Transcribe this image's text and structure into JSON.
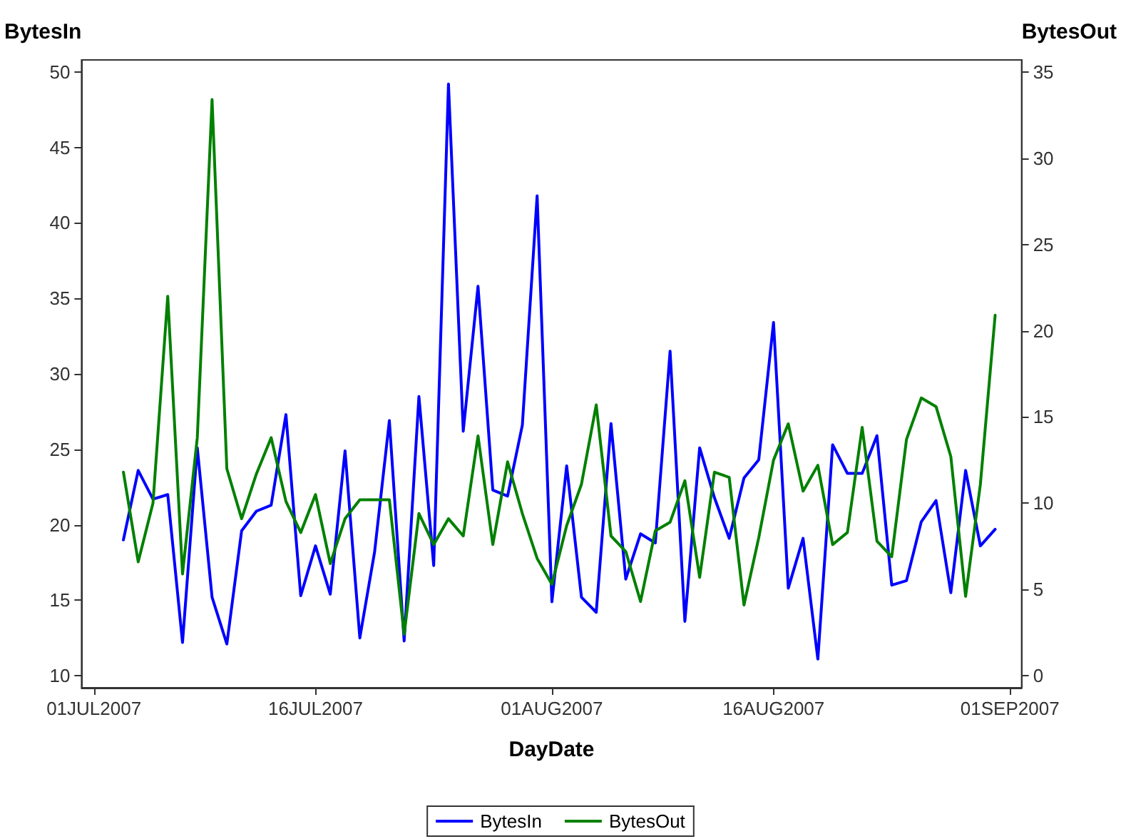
{
  "chart_data": {
    "type": "line",
    "xlabel": "DayDate",
    "ylabel": "BytesIn",
    "y2label": "BytesOut",
    "x": [
      "2007-07-03",
      "2007-07-04",
      "2007-07-05",
      "2007-07-06",
      "2007-07-07",
      "2007-07-08",
      "2007-07-09",
      "2007-07-10",
      "2007-07-11",
      "2007-07-12",
      "2007-07-13",
      "2007-07-14",
      "2007-07-15",
      "2007-07-16",
      "2007-07-17",
      "2007-07-18",
      "2007-07-19",
      "2007-07-20",
      "2007-07-21",
      "2007-07-22",
      "2007-07-23",
      "2007-07-24",
      "2007-07-25",
      "2007-07-26",
      "2007-07-27",
      "2007-07-28",
      "2007-07-29",
      "2007-07-30",
      "2007-07-31",
      "2007-08-01",
      "2007-08-02",
      "2007-08-03",
      "2007-08-04",
      "2007-08-05",
      "2007-08-06",
      "2007-08-07",
      "2007-08-08",
      "2007-08-09",
      "2007-08-10",
      "2007-08-11",
      "2007-08-12",
      "2007-08-13",
      "2007-08-14",
      "2007-08-15",
      "2007-08-16",
      "2007-08-17",
      "2007-08-18",
      "2007-08-19",
      "2007-08-20",
      "2007-08-21",
      "2007-08-22",
      "2007-08-23",
      "2007-08-24",
      "2007-08-25",
      "2007-08-26",
      "2007-08-27",
      "2007-08-28",
      "2007-08-29",
      "2007-08-30",
      "2007-08-31"
    ],
    "series": [
      {
        "name": "BytesIn",
        "color": "#0000ff",
        "values": [
          19.0,
          23.6,
          21.7,
          22.0,
          12.2,
          25.1,
          15.2,
          12.1,
          19.6,
          20.9,
          21.3,
          27.3,
          15.3,
          18.6,
          15.4,
          24.9,
          12.5,
          18.2,
          26.9,
          12.3,
          28.5,
          17.3,
          49.2,
          26.2,
          35.8,
          22.3,
          21.9,
          26.6,
          41.8,
          14.9,
          23.9,
          15.2,
          14.2,
          26.7,
          16.4,
          19.4,
          18.8,
          31.5,
          13.6,
          25.1,
          21.8,
          19.1,
          23.1,
          24.3,
          33.4,
          15.8,
          19.1,
          11.1,
          25.3,
          23.4,
          23.4,
          25.9,
          16.0,
          16.3,
          20.2,
          21.6,
          15.5,
          23.6,
          18.6,
          19.7
        ]
      },
      {
        "name": "BytesOut",
        "color": "#008000",
        "axis": "y2",
        "values": [
          11.8,
          6.6,
          10.0,
          22.0,
          5.9,
          13.8,
          33.4,
          12.0,
          9.1,
          11.7,
          13.8,
          10.1,
          8.3,
          10.5,
          6.5,
          9.1,
          10.2,
          10.2,
          10.2,
          2.4,
          9.4,
          7.6,
          9.1,
          8.1,
          13.9,
          7.6,
          12.4,
          9.4,
          6.8,
          5.3,
          8.7,
          11.1,
          15.7,
          8.1,
          7.2,
          4.3,
          8.4,
          8.9,
          11.3,
          5.7,
          11.8,
          11.5,
          4.1,
          8.0,
          12.5,
          14.6,
          10.7,
          12.2,
          7.6,
          8.3,
          14.4,
          7.8,
          6.9,
          13.7,
          16.1,
          15.6,
          12.7,
          4.6,
          11.1,
          20.9
        ]
      }
    ],
    "xlim": [
      "2007-06-30T04:00",
      "2007-09-01T19:00"
    ],
    "xticks": [
      {
        "value": "2007-07-01",
        "label": "01JUL2007"
      },
      {
        "value": "2007-07-16",
        "label": "16JUL2007"
      },
      {
        "value": "2007-08-01",
        "label": "01AUG2007"
      },
      {
        "value": "2007-08-16",
        "label": "16AUG2007"
      },
      {
        "value": "2007-09-01",
        "label": "01SEP2007"
      }
    ],
    "ylim": [
      9.2,
      50.8
    ],
    "yticks": [
      10,
      15,
      20,
      25,
      30,
      35,
      40,
      45,
      50
    ],
    "y2lim": [
      -0.7,
      35.7
    ],
    "y2ticks": [
      0,
      5,
      10,
      15,
      20,
      25,
      30,
      35
    ],
    "grid": false,
    "legend": "bottom",
    "marker": "none",
    "line_style": "solid"
  }
}
